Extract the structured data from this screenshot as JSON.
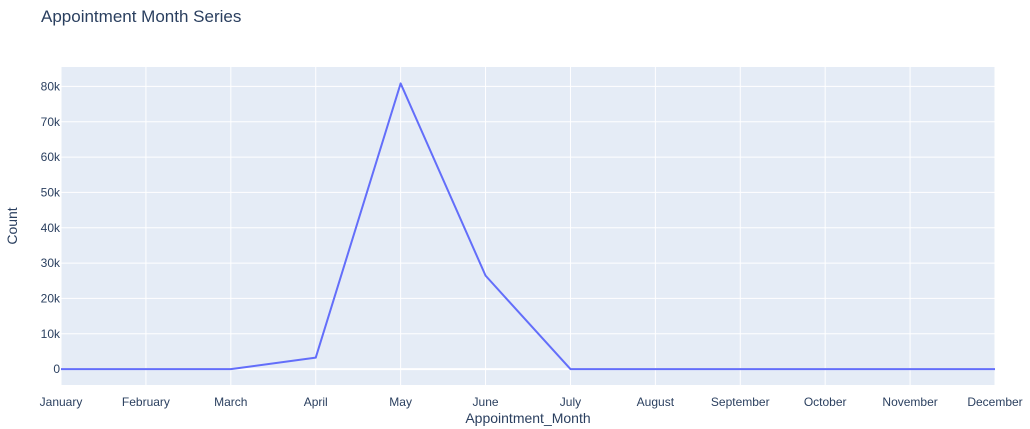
{
  "chart_data": {
    "type": "line",
    "title": "Appointment Month Series",
    "xlabel": "Appointment_Month",
    "ylabel": "Count",
    "categories": [
      "January",
      "February",
      "March",
      "April",
      "May",
      "June",
      "July",
      "August",
      "September",
      "October",
      "November",
      "December"
    ],
    "series": [
      {
        "values": [
          0,
          0,
          0,
          3235,
          80841,
          26451,
          0,
          0,
          0,
          0,
          0,
          0
        ]
      }
    ],
    "ylim": [
      -4500,
      85500
    ],
    "yticks": [
      0,
      10000,
      20000,
      30000,
      40000,
      50000,
      60000,
      70000,
      80000
    ],
    "ytick_labels": [
      "0",
      "10k",
      "20k",
      "30k",
      "40k",
      "50k",
      "60k",
      "70k",
      "80k"
    ],
    "grid": true,
    "legend": "none"
  },
  "colors": {
    "plot_background": "#e5ecf6",
    "grid": "#ffffff",
    "line": "#636efa",
    "text": "#2a3f5f",
    "page_background": "#ffffff"
  }
}
